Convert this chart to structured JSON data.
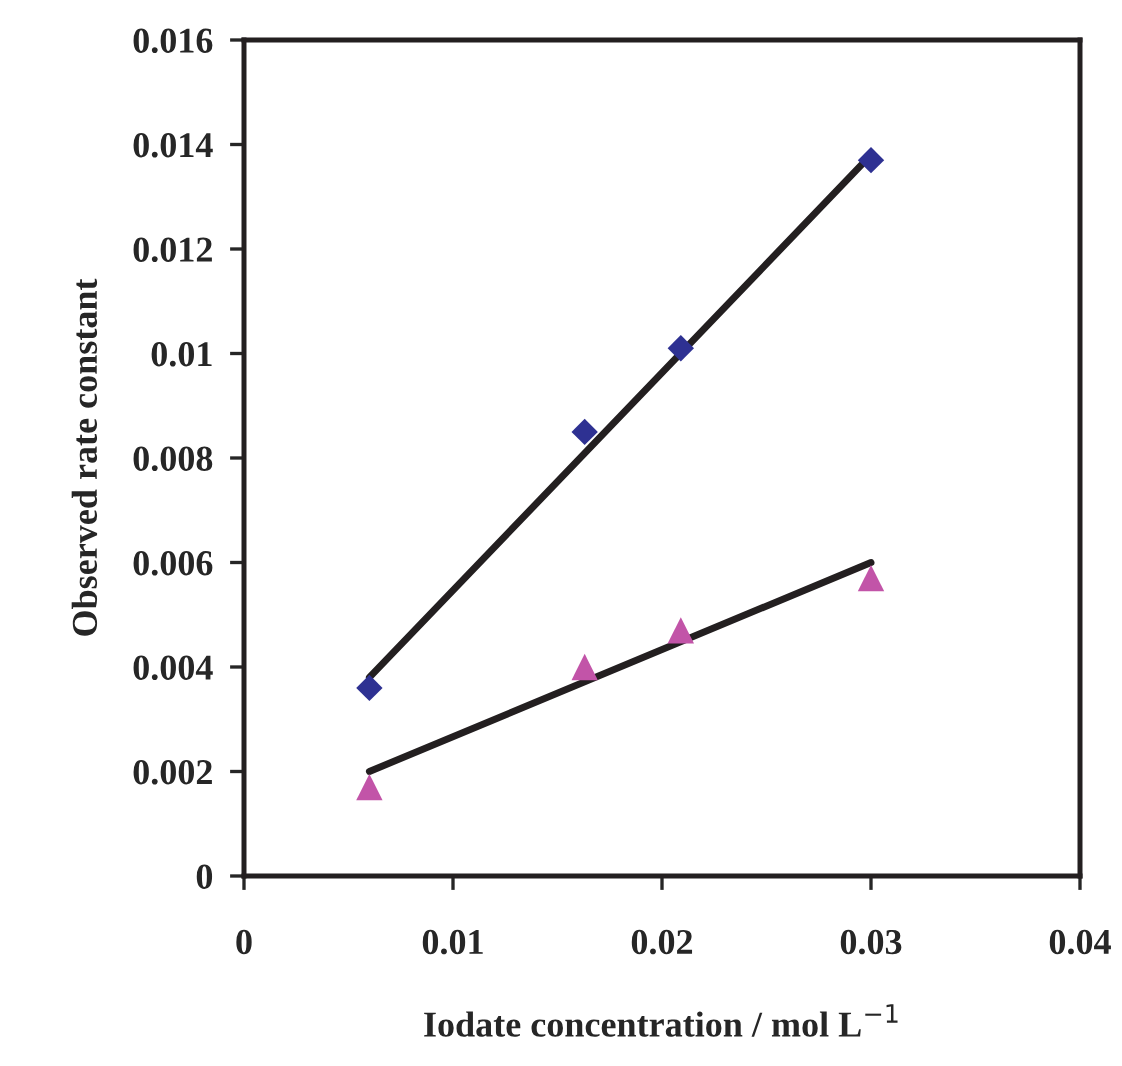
{
  "chart_data": {
    "type": "scatter",
    "xlabel": "Iodate concentration / mol L$^{−1}$",
    "ylabel": "Observed rate constant",
    "xlim": [
      0,
      0.04
    ],
    "xticks": [
      0,
      0.01,
      0.02,
      0.03,
      0.04
    ],
    "ylim": [
      0,
      0.016
    ],
    "yticks": [
      0,
      0.002,
      0.004,
      0.006,
      0.008,
      0.01,
      0.012,
      0.014,
      0.016
    ],
    "grid": false,
    "legend": false,
    "series": [
      {
        "marker": "diamond",
        "color": "#2e3192",
        "x": [
          0.006,
          0.0163,
          0.0209,
          0.03
        ],
        "values": [
          0.0036,
          0.0085,
          0.0101,
          0.0137
        ]
      },
      {
        "marker": "triangle",
        "color": "#c254a8",
        "x": [
          0.006,
          0.0163,
          0.0209,
          0.03
        ],
        "values": [
          0.0017,
          0.004,
          0.0047,
          0.0057
        ]
      },
      {
        "type": "line",
        "color": "#231f20",
        "line_style": "solid",
        "x": [
          0.006,
          0.03
        ],
        "values": [
          0.0038,
          0.0138
        ]
      },
      {
        "type": "line",
        "color": "#231f20",
        "line_style": "solid",
        "x": [
          0.006,
          0.03
        ],
        "values": [
          0.002,
          0.006
        ]
      }
    ]
  }
}
